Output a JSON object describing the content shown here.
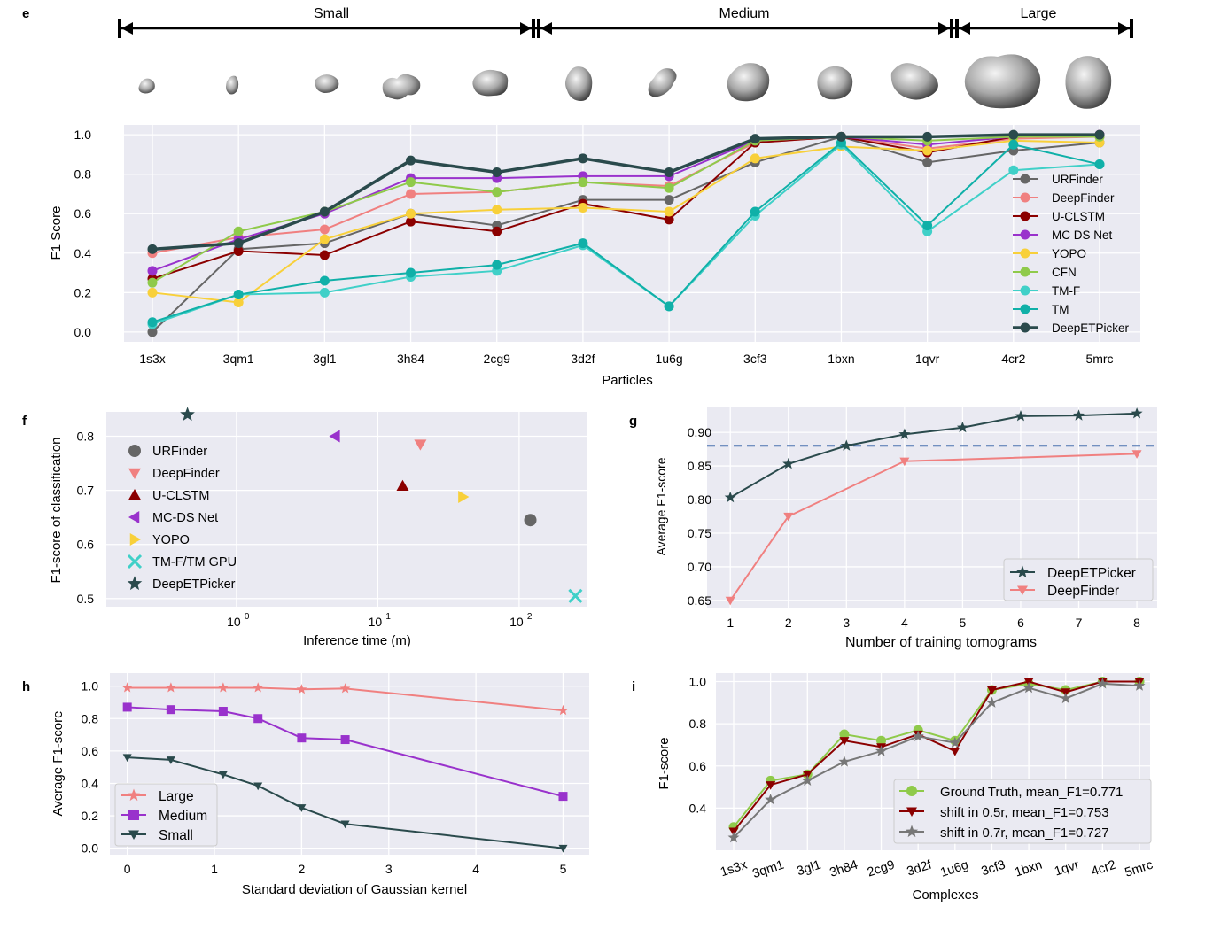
{
  "panels": {
    "e": {
      "panel_label": "e",
      "size_groups": [
        {
          "label": "Small",
          "from": "1s3x",
          "to": "2cg9"
        },
        {
          "label": "Medium",
          "from": "3d2f",
          "to": "1qvr"
        },
        {
          "label": "Large",
          "from": "4cr2",
          "to": "5mrc"
        }
      ],
      "chart_data": {
        "type": "line",
        "title": "",
        "xlabel": "Particles",
        "ylabel": "F1 Score",
        "ylim": [
          -0.05,
          1.05
        ],
        "yticks": [
          0.0,
          0.2,
          0.4,
          0.6,
          0.8,
          1.0
        ],
        "ytick_labels": [
          "0.0",
          "0.2",
          "0.4",
          "0.6",
          "0.8",
          "1.0"
        ],
        "grid": true,
        "legend_position": "right",
        "categories": [
          "1s3x",
          "3qm1",
          "3gl1",
          "3h84",
          "2cg9",
          "3d2f",
          "1u6g",
          "3cf3",
          "1bxn",
          "1qvr",
          "4cr2",
          "5mrc"
        ],
        "series": [
          {
            "name": "URFinder",
            "color": "#666666",
            "values": [
              0.0,
              0.42,
              0.45,
              0.6,
              0.54,
              0.67,
              0.67,
              0.86,
              0.99,
              0.86,
              0.92,
              0.96
            ]
          },
          {
            "name": "DeepFinder",
            "color": "#f08080",
            "values": [
              0.4,
              0.48,
              0.52,
              0.7,
              0.71,
              0.76,
              0.74,
              0.96,
              0.99,
              0.93,
              0.98,
              0.99
            ]
          },
          {
            "name": "U-CLSTM",
            "color": "#8b0000",
            "values": [
              0.27,
              0.41,
              0.39,
              0.56,
              0.51,
              0.65,
              0.57,
              0.96,
              0.99,
              0.91,
              0.99,
              1.0
            ]
          },
          {
            "name": "MC DS Net",
            "color": "#9932cc",
            "values": [
              0.31,
              0.47,
              0.6,
              0.78,
              0.78,
              0.79,
              0.79,
              0.97,
              0.99,
              0.95,
              0.99,
              1.0
            ]
          },
          {
            "name": "YOPO",
            "color": "#f8d03a",
            "values": [
              0.2,
              0.15,
              0.47,
              0.6,
              0.62,
              0.63,
              0.61,
              0.88,
              0.94,
              0.92,
              0.97,
              0.96
            ]
          },
          {
            "name": "CFN",
            "color": "#8fca4a",
            "values": [
              0.25,
              0.51,
              0.61,
              0.76,
              0.71,
              0.76,
              0.73,
              0.97,
              0.99,
              0.97,
              0.99,
              0.99
            ]
          },
          {
            "name": "TM-F",
            "color": "#40d0c8",
            "values": [
              0.04,
              0.19,
              0.2,
              0.28,
              0.31,
              0.44,
              0.13,
              0.59,
              0.95,
              0.51,
              0.82,
              0.85
            ]
          },
          {
            "name": "TM",
            "color": "#10b0a8",
            "values": [
              0.05,
              0.19,
              0.26,
              0.3,
              0.34,
              0.45,
              0.13,
              0.61,
              0.96,
              0.54,
              0.95,
              0.85
            ]
          },
          {
            "name": "DeepETPicker",
            "color": "#2a4a4c",
            "values": [
              0.42,
              0.45,
              0.61,
              0.87,
              0.81,
              0.88,
              0.81,
              0.98,
              0.99,
              0.99,
              1.0,
              1.0
            ]
          }
        ]
      }
    },
    "f": {
      "panel_label": "f",
      "chart_data": {
        "type": "scatter",
        "xlabel": "Inference time (m)",
        "ylabel": "F1-score of classification",
        "xscale": "log",
        "xlim": [
          0.12,
          300
        ],
        "ylim": [
          0.485,
          0.845
        ],
        "xticks": [
          1,
          10,
          100
        ],
        "xtick_base": "10",
        "xtick_exponents": [
          "0",
          "1",
          "2"
        ],
        "yticks": [
          0.5,
          0.6,
          0.7,
          0.8
        ],
        "ytick_labels": [
          "0.5",
          "0.6",
          "0.7",
          "0.8"
        ],
        "grid": true,
        "legend_position": "left",
        "points": [
          {
            "name": "URFinder",
            "x": 120,
            "y": 0.645,
            "marker": "circle",
            "color": "#666666"
          },
          {
            "name": "DeepFinder",
            "x": 20,
            "y": 0.785,
            "marker": "triangle-down",
            "color": "#f08080"
          },
          {
            "name": "U-CLSTM",
            "x": 15,
            "y": 0.708,
            "marker": "triangle-up",
            "color": "#8b0000"
          },
          {
            "name": "MC-DS Net",
            "x": 5,
            "y": 0.8,
            "marker": "triangle-left",
            "color": "#9932cc"
          },
          {
            "name": "YOPO",
            "x": 40,
            "y": 0.688,
            "marker": "triangle-right",
            "color": "#f8d03a"
          },
          {
            "name": "TM-F/TM GPU",
            "x": 250,
            "y": 0.505,
            "marker": "x",
            "color": "#40d0c8"
          },
          {
            "name": "DeepETPicker",
            "x": 0.45,
            "y": 0.84,
            "marker": "star",
            "color": "#2a4a4c"
          }
        ]
      }
    },
    "g": {
      "panel_label": "g",
      "chart_data": {
        "type": "line",
        "xlabel": "Number of training tomograms",
        "ylabel": "Average F1-score",
        "x": [
          1,
          2,
          3,
          4,
          5,
          6,
          7,
          8
        ],
        "xlim": [
          0.6,
          8.35
        ],
        "ylim": [
          0.638,
          0.937
        ],
        "yticks": [
          0.65,
          0.7,
          0.75,
          0.8,
          0.85,
          0.9
        ],
        "ytick_labels": [
          "0.65",
          "0.70",
          "0.75",
          "0.80",
          "0.85",
          "0.90"
        ],
        "xtick_labels": [
          "1",
          "2",
          "3",
          "4",
          "5",
          "6",
          "7",
          "8"
        ],
        "reference_line": 0.88,
        "reference_color": "#4a72b0",
        "grid": true,
        "legend_position": "bottom-right",
        "series": [
          {
            "name": "DeepETPicker",
            "color": "#2a4a4c",
            "marker": "star",
            "x": [
              1,
              2,
              3,
              4,
              5,
              6,
              7,
              8
            ],
            "values": [
              0.803,
              0.853,
              0.88,
              0.897,
              0.907,
              0.924,
              0.925,
              0.928
            ]
          },
          {
            "name": "DeepFinder",
            "color": "#f08080",
            "marker": "triangle-down",
            "x": [
              1,
              2,
              4,
              8
            ],
            "values": [
              0.65,
              0.775,
              0.857,
              0.868
            ]
          }
        ]
      }
    },
    "h": {
      "panel_label": "h",
      "chart_data": {
        "type": "line",
        "xlabel": "Standard deviation of Gaussian kernel",
        "ylabel": "Average F1-score",
        "xlim": [
          -0.2,
          5.3
        ],
        "ylim": [
          -0.04,
          1.08
        ],
        "xticks": [
          0,
          1,
          2,
          3,
          4,
          5
        ],
        "xtick_labels": [
          "0",
          "1",
          "2",
          "3",
          "4",
          "5"
        ],
        "yticks": [
          0.0,
          0.2,
          0.4,
          0.6,
          0.8,
          1.0
        ],
        "ytick_labels": [
          "0.0",
          "0.2",
          "0.4",
          "0.6",
          "0.8",
          "1.0"
        ],
        "grid": true,
        "legend_position": "bottom-left",
        "series": [
          {
            "name": "Large",
            "color": "#f08080",
            "marker": "star",
            "x": [
              0,
              0.5,
              1.1,
              1.5,
              2,
              2.5,
              5
            ],
            "values": [
              0.99,
              0.99,
              0.99,
              0.99,
              0.98,
              0.985,
              0.85
            ]
          },
          {
            "name": "Medium",
            "color": "#9932cc",
            "marker": "square",
            "x": [
              0,
              0.5,
              1.1,
              1.5,
              2,
              2.5,
              5
            ],
            "values": [
              0.87,
              0.855,
              0.845,
              0.8,
              0.68,
              0.67,
              0.32
            ]
          },
          {
            "name": "Small",
            "color": "#2a4a4c",
            "marker": "triangle-down",
            "x": [
              0,
              0.5,
              1.1,
              1.5,
              2,
              2.5,
              5
            ],
            "values": [
              0.56,
              0.545,
              0.455,
              0.385,
              0.25,
              0.15,
              0.0
            ]
          }
        ]
      }
    },
    "i": {
      "panel_label": "i",
      "chart_data": {
        "type": "line",
        "xlabel": "Complexes",
        "ylabel": "F1-score",
        "ylim": [
          0.2,
          1.04
        ],
        "yticks": [
          0.4,
          0.6,
          0.8,
          1.0
        ],
        "ytick_labels": [
          "0.4",
          "0.6",
          "0.8",
          "1.0"
        ],
        "grid": true,
        "legend_position": "bottom-right",
        "categories": [
          "1s3x",
          "3qm1",
          "3gl1",
          "3h84",
          "2cg9",
          "3d2f",
          "1u6g",
          "3cf3",
          "1bxn",
          "1qvr",
          "4cr2",
          "5mrc"
        ],
        "series": [
          {
            "name": "Ground Truth, mean_F1=0.771",
            "color": "#8fca4a",
            "marker": "circle",
            "values": [
              0.31,
              0.53,
              0.56,
              0.75,
              0.72,
              0.77,
              0.72,
              0.96,
              0.99,
              0.96,
              1.0,
              1.0
            ]
          },
          {
            "name": "shift in 0.5r, mean_F1=0.753",
            "color": "#8b0000",
            "marker": "triangle-down",
            "values": [
              0.29,
              0.51,
              0.56,
              0.72,
              0.69,
              0.75,
              0.67,
              0.96,
              1.0,
              0.95,
              1.0,
              1.0
            ]
          },
          {
            "name": "shift in 0.7r, mean_F1=0.727",
            "color": "#777777",
            "marker": "star",
            "values": [
              0.26,
              0.44,
              0.53,
              0.62,
              0.67,
              0.74,
              0.71,
              0.9,
              0.97,
              0.92,
              0.99,
              0.98
            ]
          }
        ]
      }
    }
  }
}
